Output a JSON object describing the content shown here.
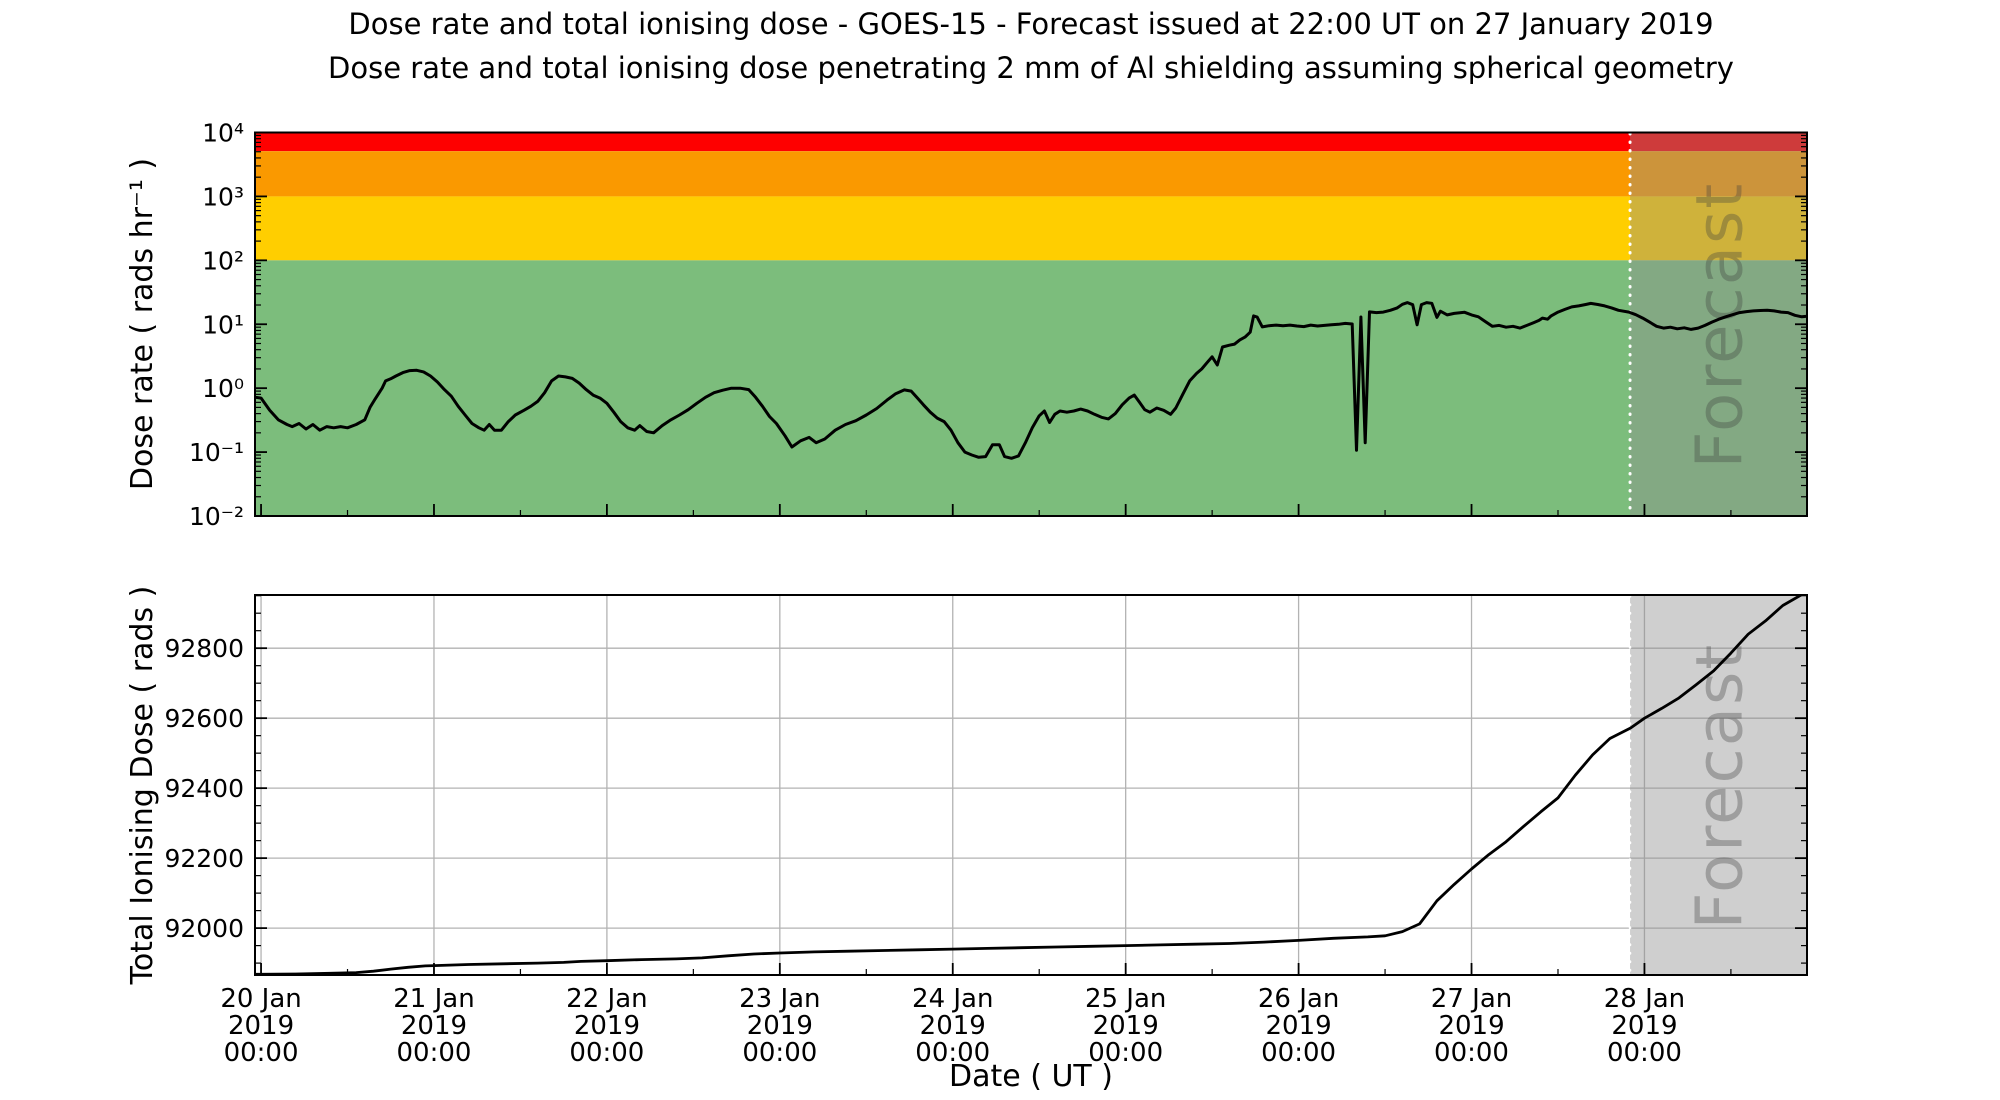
{
  "figure": {
    "title": "Dose rate and total ionising dose - GOES-15 - Forecast issued at 22:00 UT on 27 January 2019",
    "subtitle": "Dose rate and total ionising dose penetrating 2 mm of Al shielding assuming spherical geometry",
    "xlabel": "Date ( UT )",
    "watermark": "Forecast"
  },
  "colors": {
    "band_red": "#fe0000",
    "band_orange": "#fa9900",
    "band_yellow": "#ffce00",
    "band_green": "#7cbd7c",
    "forecast_overlay": "rgba(140,140,140,0.42)",
    "forecast_divider": "#ffffff",
    "grid": "#b3b3b3",
    "line": "#000000",
    "spine": "#000000"
  },
  "x_axis": {
    "label": "Date ( UT )",
    "xlim_days": [
      -0.035,
      8.94
    ],
    "major_tick_days": [
      0,
      1,
      2,
      3,
      4,
      5,
      6,
      7,
      8
    ],
    "minor_interval_days": 0.5,
    "days": [
      {
        "date": "20 Jan",
        "year": "2019",
        "time": "00:00"
      },
      {
        "date": "21 Jan",
        "year": "2019",
        "time": "00:00"
      },
      {
        "date": "22 Jan",
        "year": "2019",
        "time": "00:00"
      },
      {
        "date": "23 Jan",
        "year": "2019",
        "time": "00:00"
      },
      {
        "date": "24 Jan",
        "year": "2019",
        "time": "00:00"
      },
      {
        "date": "25 Jan",
        "year": "2019",
        "time": "00:00"
      },
      {
        "date": "26 Jan",
        "year": "2019",
        "time": "00:00"
      },
      {
        "date": "27 Jan",
        "year": "2019",
        "time": "00:00"
      },
      {
        "date": "28 Jan",
        "year": "2019",
        "time": "00:00"
      }
    ]
  },
  "chart_data": [
    {
      "name": "dose_rate",
      "type": "line",
      "yscale": "log",
      "ylabel": "Dose rate ( rads hr⁻¹ )",
      "ylim": [
        0.01,
        10000
      ],
      "ytick_values": [
        10000,
        1000,
        100,
        10,
        1,
        0.1,
        0.01
      ],
      "ytick_labels": [
        "10⁴",
        "10³",
        "10²",
        "10¹",
        "10⁰",
        "10⁻¹",
        "10⁻²"
      ],
      "grid": false,
      "forecast_start_day": 7.9167,
      "bands": [
        {
          "label": "red-alert",
          "from": 5100,
          "to": 10000,
          "color_key": "band_red"
        },
        {
          "label": "orange-alert",
          "from": 1000,
          "to": 5100,
          "color_key": "band_orange"
        },
        {
          "label": "yellow-alert",
          "from": 100,
          "to": 1000,
          "color_key": "band_yellow"
        },
        {
          "label": "quiet-green",
          "from": 0.01,
          "to": 100,
          "color_key": "band_green"
        }
      ],
      "series": [
        [
          -0.03,
          0.72
        ],
        [
          0.0,
          0.7
        ],
        [
          0.05,
          0.45
        ],
        [
          0.1,
          0.32
        ],
        [
          0.15,
          0.27
        ],
        [
          0.18,
          0.25
        ],
        [
          0.22,
          0.28
        ],
        [
          0.26,
          0.23
        ],
        [
          0.3,
          0.27
        ],
        [
          0.34,
          0.22
        ],
        [
          0.38,
          0.25
        ],
        [
          0.42,
          0.24
        ],
        [
          0.46,
          0.25
        ],
        [
          0.5,
          0.24
        ],
        [
          0.55,
          0.27
        ],
        [
          0.6,
          0.32
        ],
        [
          0.63,
          0.5
        ],
        [
          0.66,
          0.68
        ],
        [
          0.7,
          1.0
        ],
        [
          0.72,
          1.3
        ],
        [
          0.75,
          1.4
        ],
        [
          0.78,
          1.55
        ],
        [
          0.82,
          1.75
        ],
        [
          0.86,
          1.88
        ],
        [
          0.9,
          1.9
        ],
        [
          0.94,
          1.8
        ],
        [
          0.98,
          1.55
        ],
        [
          1.02,
          1.25
        ],
        [
          1.06,
          0.95
        ],
        [
          1.1,
          0.75
        ],
        [
          1.14,
          0.52
        ],
        [
          1.18,
          0.38
        ],
        [
          1.22,
          0.28
        ],
        [
          1.26,
          0.24
        ],
        [
          1.29,
          0.22
        ],
        [
          1.32,
          0.27
        ],
        [
          1.35,
          0.22
        ],
        [
          1.39,
          0.22
        ],
        [
          1.43,
          0.3
        ],
        [
          1.47,
          0.38
        ],
        [
          1.52,
          0.45
        ],
        [
          1.56,
          0.52
        ],
        [
          1.6,
          0.62
        ],
        [
          1.64,
          0.85
        ],
        [
          1.68,
          1.3
        ],
        [
          1.72,
          1.55
        ],
        [
          1.76,
          1.5
        ],
        [
          1.8,
          1.42
        ],
        [
          1.84,
          1.2
        ],
        [
          1.88,
          0.95
        ],
        [
          1.92,
          0.78
        ],
        [
          1.96,
          0.7
        ],
        [
          2.0,
          0.58
        ],
        [
          2.04,
          0.42
        ],
        [
          2.08,
          0.3
        ],
        [
          2.12,
          0.24
        ],
        [
          2.16,
          0.22
        ],
        [
          2.19,
          0.26
        ],
        [
          2.23,
          0.21
        ],
        [
          2.27,
          0.2
        ],
        [
          2.32,
          0.26
        ],
        [
          2.37,
          0.32
        ],
        [
          2.42,
          0.38
        ],
        [
          2.47,
          0.46
        ],
        [
          2.52,
          0.58
        ],
        [
          2.57,
          0.72
        ],
        [
          2.62,
          0.85
        ],
        [
          2.67,
          0.93
        ],
        [
          2.72,
          1.0
        ],
        [
          2.77,
          1.0
        ],
        [
          2.82,
          0.95
        ],
        [
          2.86,
          0.72
        ],
        [
          2.9,
          0.52
        ],
        [
          2.94,
          0.36
        ],
        [
          2.98,
          0.28
        ],
        [
          3.03,
          0.18
        ],
        [
          3.07,
          0.12
        ],
        [
          3.12,
          0.15
        ],
        [
          3.17,
          0.17
        ],
        [
          3.21,
          0.14
        ],
        [
          3.26,
          0.16
        ],
        [
          3.32,
          0.22
        ],
        [
          3.38,
          0.27
        ],
        [
          3.44,
          0.31
        ],
        [
          3.5,
          0.38
        ],
        [
          3.56,
          0.48
        ],
        [
          3.62,
          0.65
        ],
        [
          3.67,
          0.82
        ],
        [
          3.72,
          0.94
        ],
        [
          3.76,
          0.9
        ],
        [
          3.8,
          0.68
        ],
        [
          3.83,
          0.55
        ],
        [
          3.87,
          0.42
        ],
        [
          3.91,
          0.34
        ],
        [
          3.95,
          0.3
        ],
        [
          3.99,
          0.22
        ],
        [
          4.03,
          0.14
        ],
        [
          4.07,
          0.1
        ],
        [
          4.11,
          0.09
        ],
        [
          4.15,
          0.083
        ],
        [
          4.19,
          0.085
        ],
        [
          4.23,
          0.13
        ],
        [
          4.27,
          0.13
        ],
        [
          4.3,
          0.085
        ],
        [
          4.34,
          0.08
        ],
        [
          4.38,
          0.087
        ],
        [
          4.42,
          0.14
        ],
        [
          4.46,
          0.24
        ],
        [
          4.5,
          0.37
        ],
        [
          4.53,
          0.44
        ],
        [
          4.56,
          0.29
        ],
        [
          4.59,
          0.39
        ],
        [
          4.62,
          0.44
        ],
        [
          4.66,
          0.42
        ],
        [
          4.7,
          0.44
        ],
        [
          4.74,
          0.47
        ],
        [
          4.78,
          0.44
        ],
        [
          4.82,
          0.39
        ],
        [
          4.86,
          0.35
        ],
        [
          4.9,
          0.33
        ],
        [
          4.94,
          0.4
        ],
        [
          4.98,
          0.55
        ],
        [
          5.02,
          0.7
        ],
        [
          5.05,
          0.78
        ],
        [
          5.08,
          0.6
        ],
        [
          5.11,
          0.46
        ],
        [
          5.14,
          0.42
        ],
        [
          5.18,
          0.49
        ],
        [
          5.22,
          0.45
        ],
        [
          5.26,
          0.39
        ],
        [
          5.29,
          0.49
        ],
        [
          5.33,
          0.8
        ],
        [
          5.37,
          1.3
        ],
        [
          5.41,
          1.7
        ],
        [
          5.44,
          2.0
        ],
        [
          5.47,
          2.5
        ],
        [
          5.5,
          3.1
        ],
        [
          5.53,
          2.3
        ],
        [
          5.56,
          4.4
        ],
        [
          5.6,
          4.7
        ],
        [
          5.63,
          4.9
        ],
        [
          5.66,
          5.7
        ],
        [
          5.69,
          6.3
        ],
        [
          5.72,
          7.5
        ],
        [
          5.74,
          13.5
        ],
        [
          5.76,
          13.0
        ],
        [
          5.79,
          9.1
        ],
        [
          5.83,
          9.5
        ],
        [
          5.87,
          9.7
        ],
        [
          5.91,
          9.5
        ],
        [
          5.95,
          9.7
        ],
        [
          5.99,
          9.4
        ],
        [
          6.03,
          9.2
        ],
        [
          6.07,
          9.7
        ],
        [
          6.11,
          9.4
        ],
        [
          6.15,
          9.6
        ],
        [
          6.19,
          9.8
        ],
        [
          6.23,
          10.0
        ],
        [
          6.27,
          10.3
        ],
        [
          6.31,
          10.1
        ],
        [
          6.335,
          0.107
        ],
        [
          6.36,
          13.0
        ],
        [
          6.385,
          0.14
        ],
        [
          6.41,
          15.6
        ],
        [
          6.45,
          15.2
        ],
        [
          6.49,
          15.5
        ],
        [
          6.53,
          16.5
        ],
        [
          6.57,
          18.0
        ],
        [
          6.6,
          20.5
        ],
        [
          6.63,
          21.8
        ],
        [
          6.66,
          20.2
        ],
        [
          6.685,
          9.8
        ],
        [
          6.71,
          20.3
        ],
        [
          6.74,
          21.8
        ],
        [
          6.77,
          21.3
        ],
        [
          6.8,
          12.8
        ],
        [
          6.82,
          16.0
        ],
        [
          6.86,
          14.0
        ],
        [
          6.9,
          14.8
        ],
        [
          6.96,
          15.4
        ],
        [
          7.0,
          14.0
        ],
        [
          7.04,
          13.1
        ],
        [
          7.08,
          11.0
        ],
        [
          7.12,
          9.3
        ],
        [
          7.16,
          9.6
        ],
        [
          7.2,
          9.0
        ],
        [
          7.24,
          9.3
        ],
        [
          7.28,
          8.7
        ],
        [
          7.32,
          9.6
        ],
        [
          7.36,
          10.6
        ],
        [
          7.39,
          11.5
        ],
        [
          7.41,
          12.5
        ],
        [
          7.44,
          12.0
        ],
        [
          7.46,
          13.5
        ],
        [
          7.5,
          15.5
        ],
        [
          7.54,
          17.1
        ],
        [
          7.58,
          18.7
        ],
        [
          7.62,
          19.4
        ],
        [
          7.66,
          20.4
        ],
        [
          7.69,
          21.2
        ],
        [
          7.73,
          20.4
        ],
        [
          7.77,
          19.4
        ],
        [
          7.81,
          18.0
        ],
        [
          7.85,
          16.5
        ],
        [
          7.91,
          15.5
        ],
        [
          7.95,
          14.1
        ],
        [
          7.99,
          12.5
        ],
        [
          8.03,
          10.8
        ],
        [
          8.07,
          9.3
        ],
        [
          8.11,
          8.7
        ],
        [
          8.15,
          9.0
        ],
        [
          8.19,
          8.5
        ],
        [
          8.23,
          8.8
        ],
        [
          8.27,
          8.3
        ],
        [
          8.31,
          8.7
        ],
        [
          8.35,
          9.6
        ],
        [
          8.39,
          10.8
        ],
        [
          8.43,
          12.0
        ],
        [
          8.47,
          13.1
        ],
        [
          8.51,
          14.1
        ],
        [
          8.55,
          15.2
        ],
        [
          8.59,
          15.8
        ],
        [
          8.63,
          16.2
        ],
        [
          8.67,
          16.4
        ],
        [
          8.71,
          16.6
        ],
        [
          8.75,
          16.2
        ],
        [
          8.79,
          15.5
        ],
        [
          8.83,
          15.2
        ],
        [
          8.87,
          13.8
        ],
        [
          8.91,
          13.1
        ],
        [
          8.94,
          13.3
        ]
      ]
    },
    {
      "name": "total_ionising_dose",
      "type": "line",
      "yscale": "linear",
      "ylabel": "Total Ionising Dose ( rads )",
      "ylim": [
        91866,
        92952
      ],
      "ytick_values": [
        92000,
        92200,
        92400,
        92600,
        92800
      ],
      "ytick_labels": [
        "92000",
        "92200",
        "92400",
        "92600",
        "92800"
      ],
      "y_minor_interval": 50,
      "grid": true,
      "forecast_start_day": 7.9167,
      "series": [
        [
          -0.03,
          91868
        ],
        [
          0.0,
          91868
        ],
        [
          0.2,
          91869
        ],
        [
          0.4,
          91871
        ],
        [
          0.55,
          91873
        ],
        [
          0.65,
          91877
        ],
        [
          0.75,
          91883
        ],
        [
          0.85,
          91888
        ],
        [
          0.95,
          91892
        ],
        [
          1.0,
          91893
        ],
        [
          1.2,
          91896
        ],
        [
          1.4,
          91898
        ],
        [
          1.6,
          91900
        ],
        [
          1.75,
          91902
        ],
        [
          1.85,
          91905
        ],
        [
          2.0,
          91907
        ],
        [
          2.2,
          91910
        ],
        [
          2.4,
          91912
        ],
        [
          2.55,
          91915
        ],
        [
          2.7,
          91921
        ],
        [
          2.85,
          91926
        ],
        [
          3.0,
          91929
        ],
        [
          3.2,
          91932
        ],
        [
          3.4,
          91934
        ],
        [
          3.6,
          91936
        ],
        [
          3.8,
          91938
        ],
        [
          4.0,
          91940
        ],
        [
          4.2,
          91942
        ],
        [
          4.4,
          91944
        ],
        [
          4.6,
          91946
        ],
        [
          4.8,
          91948
        ],
        [
          5.0,
          91950
        ],
        [
          5.2,
          91952
        ],
        [
          5.4,
          91954
        ],
        [
          5.6,
          91956
        ],
        [
          5.8,
          91960
        ],
        [
          6.0,
          91965
        ],
        [
          6.2,
          91971
        ],
        [
          6.4,
          91975
        ],
        [
          6.5,
          91978
        ],
        [
          6.6,
          91990
        ],
        [
          6.7,
          92012
        ],
        [
          6.8,
          92078
        ],
        [
          6.9,
          92125
        ],
        [
          7.0,
          92169
        ],
        [
          7.1,
          92210
        ],
        [
          7.2,
          92247
        ],
        [
          7.3,
          92290
        ],
        [
          7.4,
          92332
        ],
        [
          7.5,
          92372
        ],
        [
          7.6,
          92437
        ],
        [
          7.7,
          92495
        ],
        [
          7.8,
          92542
        ],
        [
          7.92,
          92572
        ],
        [
          8.0,
          92600
        ],
        [
          8.1,
          92628
        ],
        [
          8.2,
          92658
        ],
        [
          8.3,
          92696
        ],
        [
          8.4,
          92735
        ],
        [
          8.5,
          92786
        ],
        [
          8.6,
          92840
        ],
        [
          8.7,
          92878
        ],
        [
          8.8,
          92922
        ],
        [
          8.92,
          92956
        ],
        [
          8.94,
          92960
        ]
      ]
    }
  ]
}
